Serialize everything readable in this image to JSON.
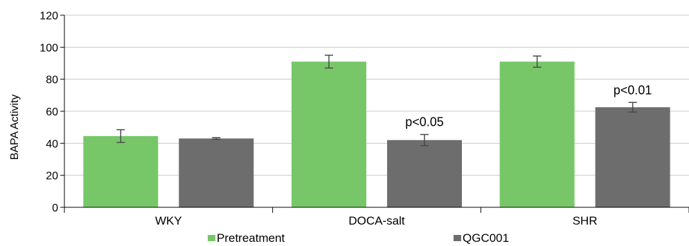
{
  "chart_data": {
    "type": "bar",
    "title": "",
    "xlabel": "",
    "ylabel": "BAPA Activity",
    "ylim": [
      0,
      120
    ],
    "yticks": [
      0,
      20,
      40,
      60,
      80,
      100,
      120
    ],
    "grid": true,
    "legend_position": "bottom",
    "categories": [
      "WKY",
      "DOCA-salt",
      "SHR"
    ],
    "series": [
      {
        "name": "Pretreatment",
        "color": "#77c769",
        "values": [
          44.5,
          91,
          91
        ],
        "errors": [
          4,
          4,
          3.5
        ]
      },
      {
        "name": "QGC001",
        "color": "#6d6d6d",
        "values": [
          43,
          42,
          62.5
        ],
        "errors": [
          0.5,
          3.5,
          3
        ]
      }
    ],
    "annotations": [
      {
        "category": "DOCA-salt",
        "series": "QGC001",
        "text": "p<0.05"
      },
      {
        "category": "SHR",
        "series": "QGC001",
        "text": "p<0.01"
      }
    ]
  }
}
